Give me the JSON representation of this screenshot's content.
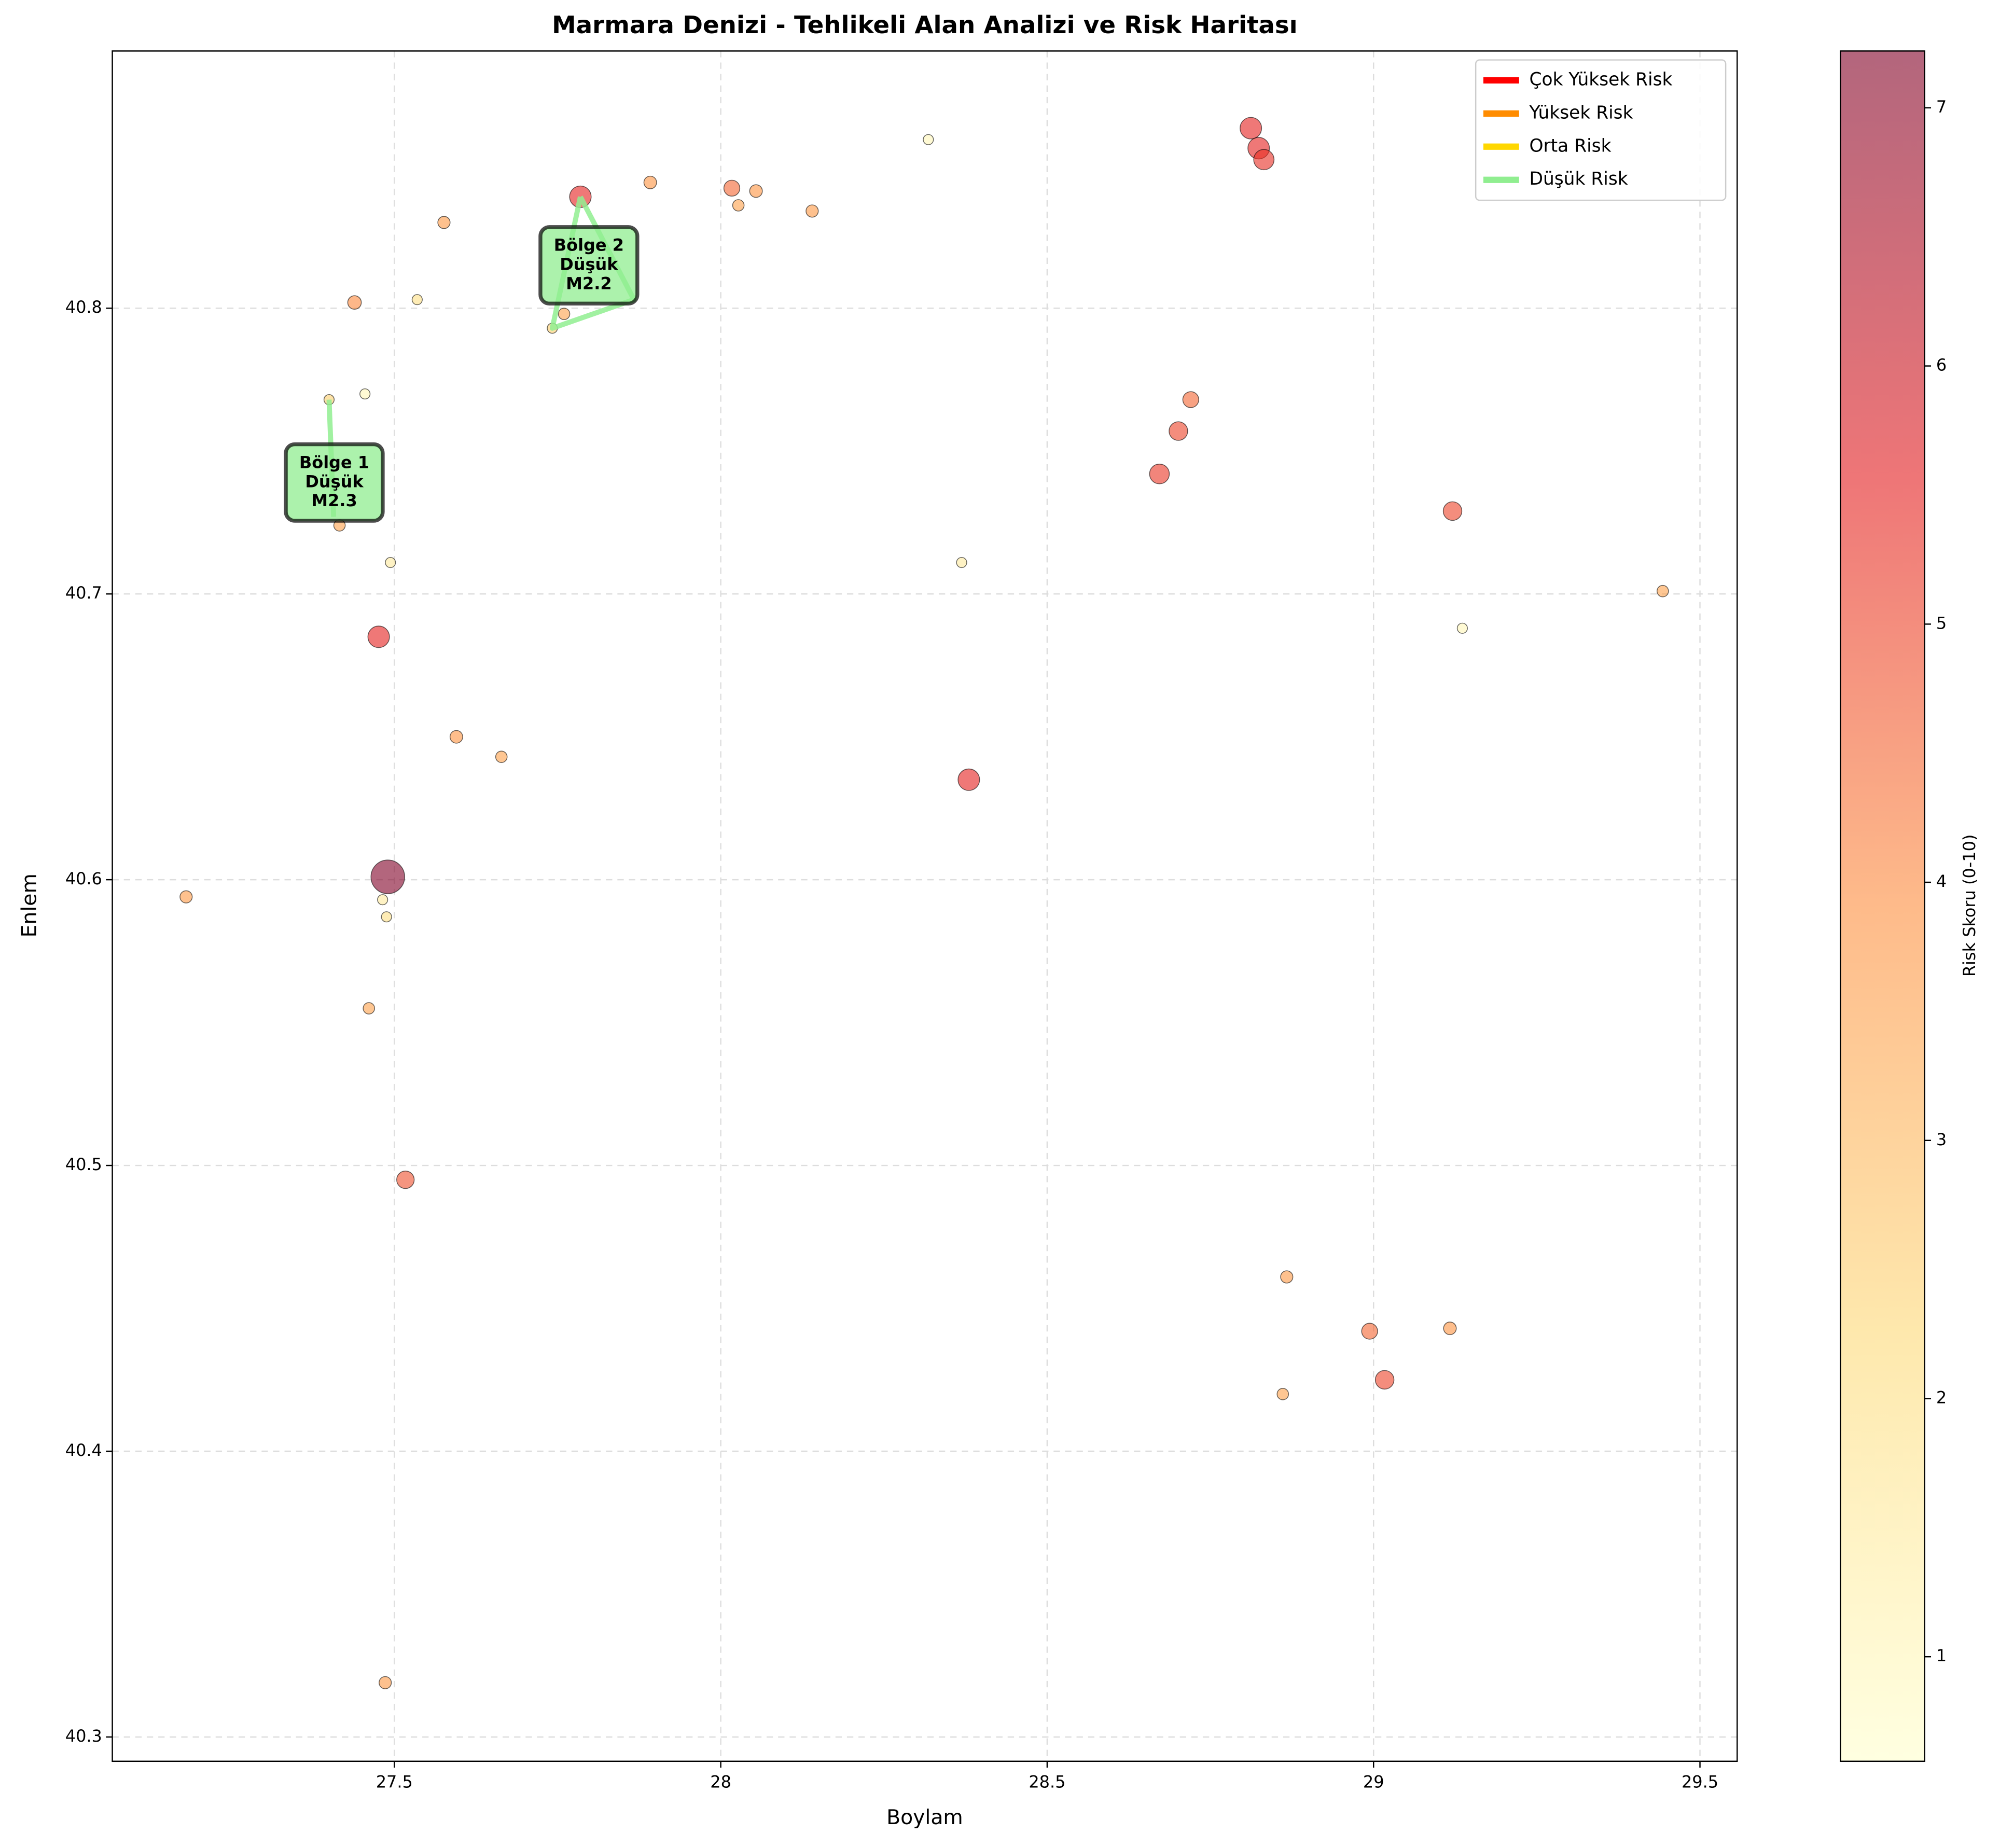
{
  "chart_data": {
    "type": "scatter",
    "title": "Marmara Denizi - Tehlikeli Alan Analizi ve Risk Haritası",
    "xlabel": "Boylam",
    "ylabel": "Enlem",
    "xlim": [
      27.068,
      29.557
    ],
    "ylim": [
      40.2915,
      40.89
    ],
    "xticks": [
      27.5,
      28.0,
      28.5,
      29.0,
      29.5
    ],
    "yticks": [
      40.3,
      40.4,
      40.5,
      40.6,
      40.7,
      40.8
    ],
    "grid": true,
    "series": [
      {
        "x": [
          28.812,
          28.824,
          28.832,
          28.318,
          27.892,
          28.017,
          28.054,
          28.027,
          28.14,
          27.785,
          27.576,
          27.439,
          27.535,
          27.76,
          27.742,
          27.455,
          27.4,
          28.72,
          28.701,
          28.672,
          29.121,
          27.416,
          27.494,
          28.369,
          29.443,
          29.136,
          27.476,
          27.595,
          27.664,
          28.38,
          27.49,
          27.181,
          27.482,
          27.488,
          27.461,
          27.517,
          28.867,
          28.994,
          29.117,
          29.017,
          28.861,
          27.486
        ],
        "y": [
          40.863,
          40.856,
          40.852,
          40.859,
          40.844,
          40.842,
          40.841,
          40.836,
          40.834,
          40.839,
          40.83,
          40.802,
          40.803,
          40.798,
          40.793,
          40.77,
          40.768,
          40.768,
          40.757,
          40.742,
          40.729,
          40.724,
          40.711,
          40.711,
          40.701,
          40.688,
          40.685,
          40.65,
          40.643,
          40.635,
          40.601,
          40.594,
          40.593,
          40.587,
          40.555,
          40.495,
          40.461,
          40.442,
          40.443,
          40.425,
          40.42,
          40.319
        ],
        "risk": [
          5.5,
          5.5,
          5.3,
          1.0,
          3.8,
          4.5,
          3.8,
          3.5,
          3.7,
          5.5,
          3.7,
          4.0,
          2.0,
          3.5,
          2.5,
          1.0,
          2.5,
          4.5,
          5.0,
          5.2,
          5.0,
          3.5,
          1.5,
          1.5,
          3.5,
          1.0,
          5.5,
          3.8,
          3.5,
          5.5,
          7.2,
          3.7,
          1.5,
          2.0,
          3.5,
          4.8,
          3.7,
          4.5,
          3.8,
          5.0,
          3.5,
          3.7
        ]
      }
    ],
    "colormap": [
      "#ffffcc",
      "#fed976",
      "#fd8d3c",
      "#e31a1c",
      "#800026"
    ],
    "alpha": 0.6,
    "clim": [
      0.595,
      7.22
    ],
    "colorbar_ticks": [
      1,
      2,
      3,
      4,
      5,
      6,
      7
    ],
    "colorbar_label": "Risk Skoru (0-10)",
    "legend": {
      "position": "upper right",
      "entries": [
        {
          "name": "Çok Yüksek Risk",
          "color": "#ff0000"
        },
        {
          "name": "Yüksek Risk",
          "color": "#ff8c00"
        },
        {
          "name": "Orta Risk",
          "color": "#ffd700"
        },
        {
          "name": "Düşük Risk",
          "color": "#90ee90"
        }
      ]
    },
    "zones": [
      {
        "lines": [
          "Bölge 1",
          "Düşük",
          "M2.3"
        ],
        "color": "#90ee90",
        "x": [
          27.4,
          27.407
        ],
        "y": [
          40.768,
          40.727
        ],
        "label_x": 27.408,
        "label_y": 40.739
      },
      {
        "lines": [
          "Bölge 2",
          "Düşük",
          "M2.2"
        ],
        "color": "#90ee90",
        "x": [
          27.785,
          27.867,
          27.742,
          27.785
        ],
        "y": [
          40.839,
          40.803,
          40.793,
          40.839
        ],
        "label_x": 27.798,
        "label_y": 40.815
      }
    ]
  }
}
